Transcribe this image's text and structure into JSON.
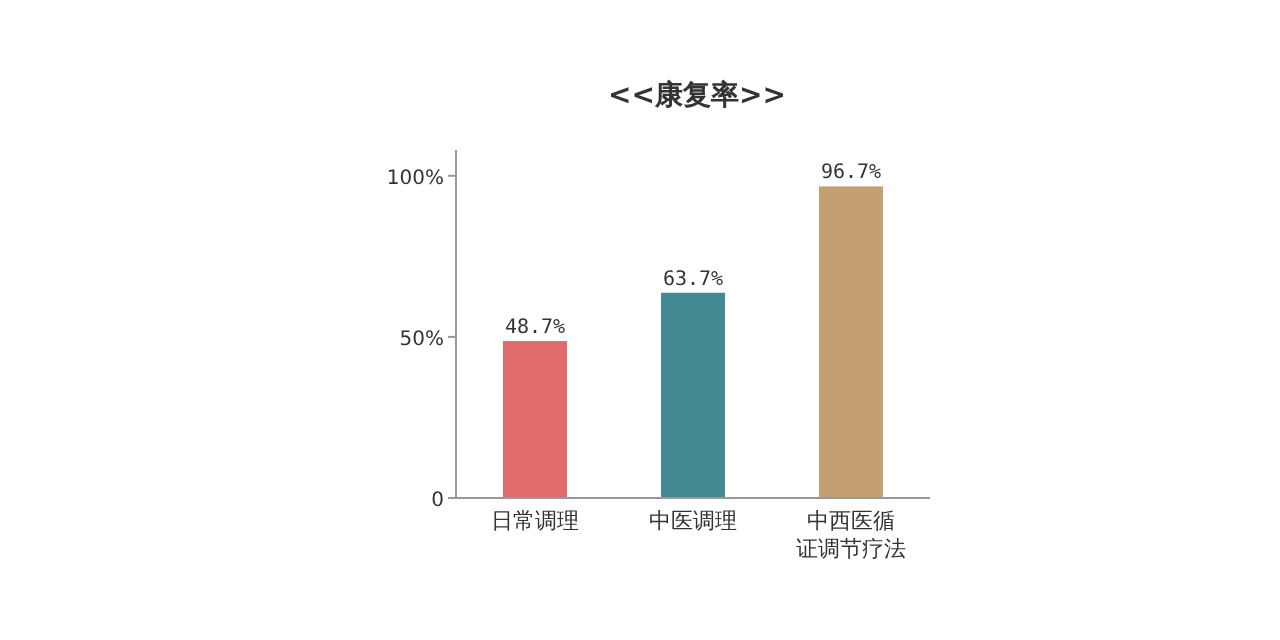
{
  "chart_data": {
    "type": "bar",
    "title": "<<康复率>>",
    "categories": [
      "日常调理",
      "中医调理",
      "中西医循证调节疗法"
    ],
    "values": [
      48.7,
      63.7,
      96.7
    ],
    "colors": [
      "#e06b6b",
      "#438a93",
      "#c4a070"
    ],
    "ylim": [
      0,
      108
    ],
    "yticks": [
      0,
      {
        "value": 50,
        "label": "50%"
      },
      {
        "value": 100,
        "label": "100%"
      }
    ],
    "value_labels": [
      "48.7%",
      "63.7%",
      "96.7%"
    ],
    "grid": false
  }
}
